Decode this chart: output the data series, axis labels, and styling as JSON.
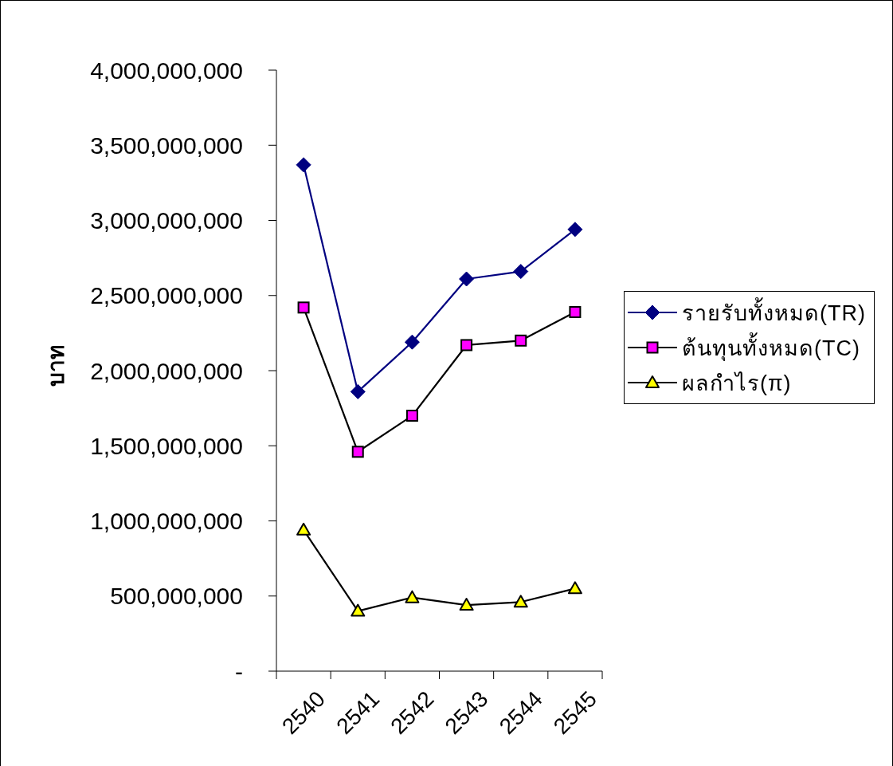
{
  "chart_data": {
    "type": "line",
    "ylabel": "บาท",
    "categories": [
      "2540",
      "2541",
      "2542",
      "2543",
      "2544",
      "2545"
    ],
    "series": [
      {
        "name": "รายรับทั้งหมด(TR)",
        "color": "#000080",
        "marker": "diamond",
        "values": [
          3370000000,
          1860000000,
          2190000000,
          2610000000,
          2660000000,
          2940000000
        ]
      },
      {
        "name": "ต้นทุนทั้งหมด(TC)",
        "color": "#000000",
        "colors": [
          "#ff00ff",
          "#ff00ff",
          "#ff00ff",
          "#ff00ff",
          "#ff00ff",
          "#ff00ff"
        ],
        "marker": "square",
        "values": [
          2420000000,
          1460000000,
          1700000000,
          2170000000,
          2200000000,
          2390000000
        ]
      },
      {
        "name": "ผลกำไร(π)",
        "color": "#000000",
        "colors": [
          "#ffff00",
          "#ffff00",
          "#ffff00",
          "#ffff00",
          "#ffff00",
          "#ffff00"
        ],
        "marker": "triangle",
        "values": [
          940000000,
          400000000,
          490000000,
          440000000,
          460000000,
          550000000
        ]
      }
    ],
    "ylim": [
      0,
      4000000000
    ],
    "yticks": [
      {
        "value": 0,
        "label": "-"
      },
      {
        "value": 500000000,
        "label": "500,000,000"
      },
      {
        "value": 1000000000,
        "label": "1,000,000,000"
      },
      {
        "value": 1500000000,
        "label": "1,500,000,000"
      },
      {
        "value": 2000000000,
        "label": "2,000,000,000"
      },
      {
        "value": 2500000000,
        "label": "2,500,000,000"
      },
      {
        "value": 3000000000,
        "label": "3,000,000,000"
      },
      {
        "value": 3500000000,
        "label": "3,500,000,000"
      },
      {
        "value": 4000000000,
        "label": "4,000,000,000"
      }
    ],
    "legend": "right"
  }
}
